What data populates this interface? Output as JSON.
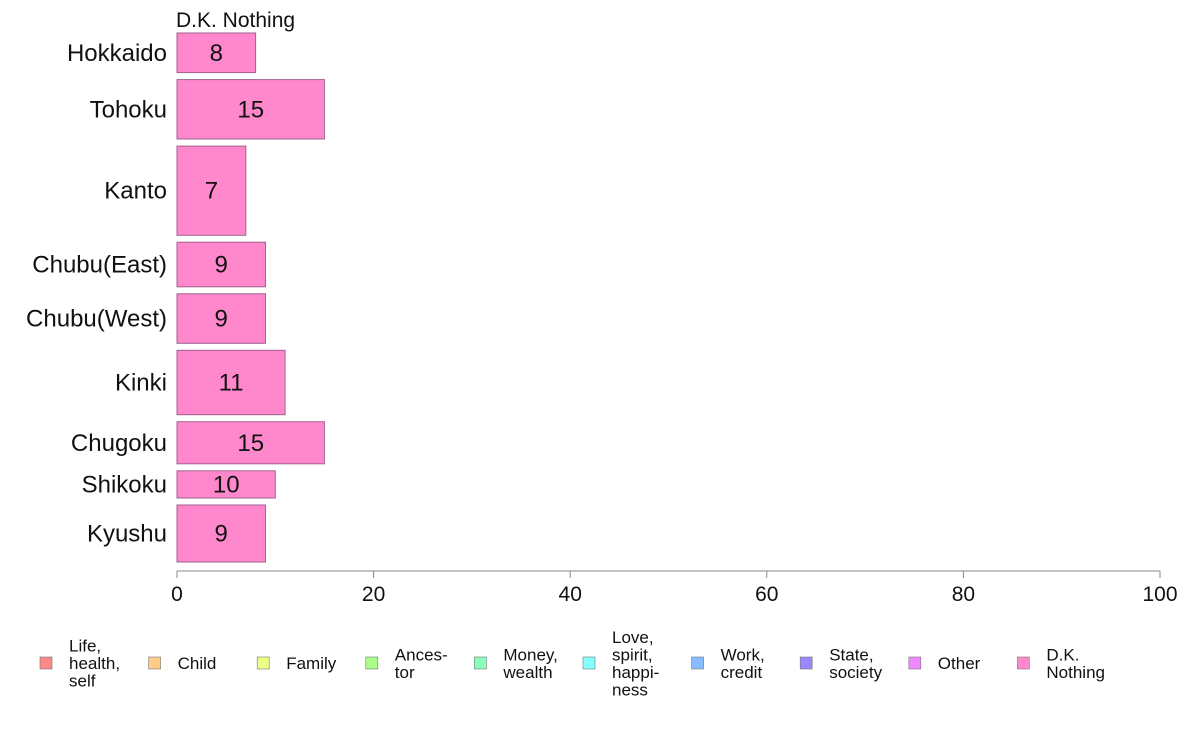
{
  "chart_data": {
    "type": "bar",
    "orientation": "horizontal",
    "title": "D.K. Nothing",
    "categories": [
      "Hokkaido",
      "Tohoku",
      "Kanto",
      "Chubu(East)",
      "Chubu(West)",
      "Kinki",
      "Chugoku",
      "Shikoku",
      "Kyushu"
    ],
    "series": [
      {
        "name": "D.K. Nothing",
        "color": "#ff88cc",
        "values": [
          8,
          15,
          7,
          9,
          9,
          11,
          15,
          10,
          9
        ],
        "labels": [
          "8",
          "15",
          "7",
          "9",
          "9",
          "11",
          "15",
          "10",
          "9"
        ]
      }
    ],
    "bar_weights": [
      0.8,
      1.2,
      1.8,
      0.9,
      1.0,
      1.3,
      0.85,
      0.55,
      1.15
    ],
    "xlim": [
      0,
      100
    ],
    "xticks": [
      "0",
      "20",
      "40",
      "60",
      "80",
      "100"
    ],
    "grid": false,
    "legend_position": "bottom",
    "legend": [
      {
        "lines": [
          "Life,",
          "health,",
          "self"
        ],
        "color": "#ff8888"
      },
      {
        "lines": [
          "Child"
        ],
        "color": "#ffcc88"
      },
      {
        "lines": [
          "Family"
        ],
        "color": "#eeff88"
      },
      {
        "lines": [
          "Ances-",
          "tor"
        ],
        "color": "#aaff88"
      },
      {
        "lines": [
          "Money,",
          "wealth"
        ],
        "color": "#88ffbb"
      },
      {
        "lines": [
          "Love,",
          "spirit,",
          "happi-",
          "ness"
        ],
        "color": "#88ffff"
      },
      {
        "lines": [
          "Work,",
          "credit"
        ],
        "color": "#88bbff"
      },
      {
        "lines": [
          "State,",
          "society"
        ],
        "color": "#9988ff"
      },
      {
        "lines": [
          "Other"
        ],
        "color": "#ee88ff"
      },
      {
        "lines": [
          "D.K.",
          "Nothing"
        ],
        "color": "#ff88cc"
      }
    ]
  }
}
